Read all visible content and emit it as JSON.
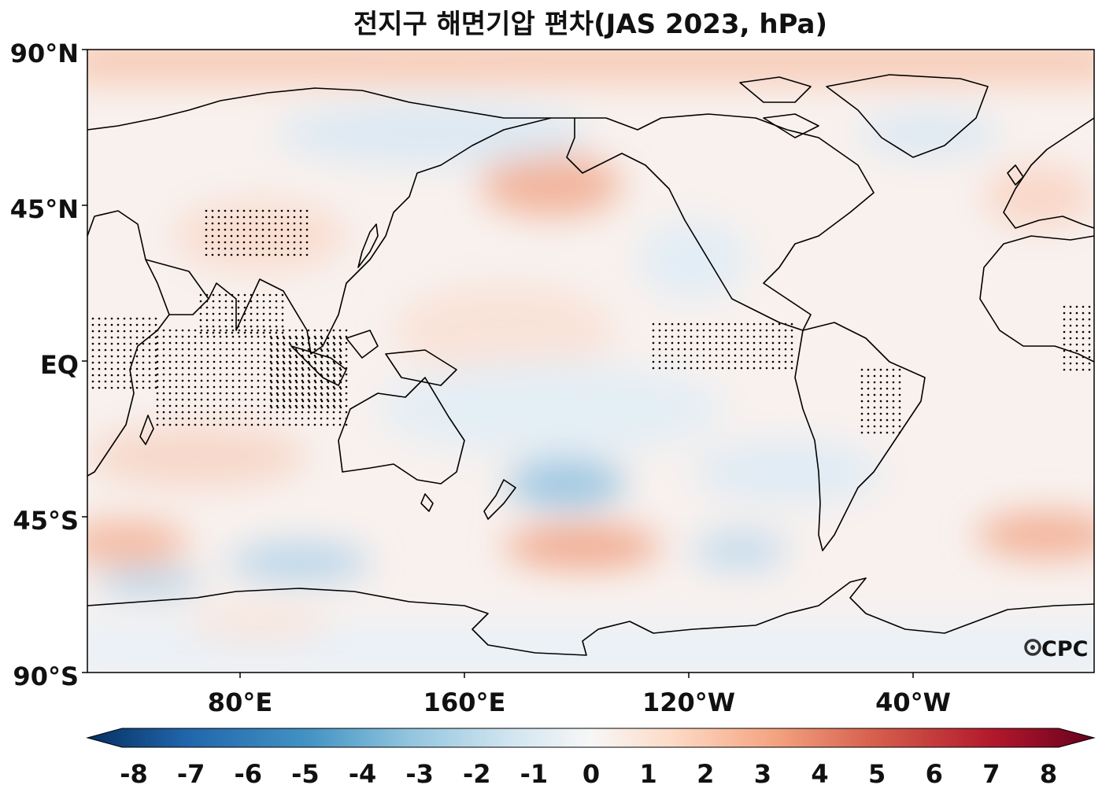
{
  "title": "전지구 해면기압 편차(JAS 2023, hPa)",
  "logo_text": "CPC",
  "map": {
    "projection": "equirectangular, centered ~160°W",
    "lat_labels": [
      "90°N",
      "45°N",
      "EQ",
      "45°S",
      "90°S"
    ],
    "lon_labels": [
      "80°E",
      "160°E",
      "120°W",
      "40°W"
    ],
    "variable": "sea level pressure anomaly",
    "units": "hPa",
    "stippling": "significant regions (dots)"
  },
  "colorbar": {
    "min": -8,
    "max": 8,
    "ticks": [
      "-8",
      "-7",
      "-6",
      "-5",
      "-4",
      "-3",
      "-2",
      "-1",
      "0",
      "1",
      "2",
      "3",
      "4",
      "5",
      "6",
      "7",
      "8"
    ],
    "colormap": "RdBu_r",
    "colors": [
      "#053061",
      "#2166ac",
      "#4393c3",
      "#92c5de",
      "#d1e5f0",
      "#f7f7f7",
      "#fddbc7",
      "#f4a582",
      "#d6604d",
      "#b2182b",
      "#67001f"
    ]
  }
}
